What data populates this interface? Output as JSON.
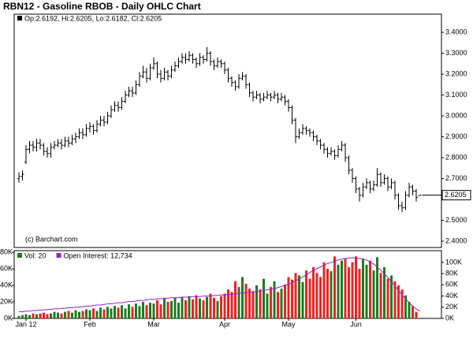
{
  "chart_data": [
    {
      "type": "ohlc",
      "title": "RBN12 - Gasoline RBOB - Daily OHLC Chart",
      "legend_text": "Op:2.6192, Hi:2.6205, Lo:2.6182, Cl:2.6205",
      "annotation": "(c) Barchart.com",
      "color": "#000000",
      "ylim": [
        2.37,
        3.487
      ],
      "yticks": [
        {
          "value": 2.4,
          "label": "2.4000"
        },
        {
          "value": 2.5,
          "label": "2.5000"
        },
        {
          "value": 2.7,
          "label": "2.7000"
        },
        {
          "value": 2.8,
          "label": "2.8000"
        },
        {
          "value": 2.9,
          "label": "2.9000"
        },
        {
          "value": 3.0,
          "label": "3.0000"
        },
        {
          "value": 3.1,
          "label": "3.1000"
        },
        {
          "value": 3.2,
          "label": "3.2000"
        },
        {
          "value": 3.3,
          "label": "3.3000"
        },
        {
          "value": 3.4,
          "label": "3.4000"
        }
      ],
      "ohlc": [
        [
          2.7,
          2.73,
          2.68,
          2.71
        ],
        [
          2.71,
          2.74,
          2.69,
          2.72
        ],
        [
          2.78,
          2.86,
          2.77,
          2.84
        ],
        [
          2.84,
          2.88,
          2.82,
          2.86
        ],
        [
          2.86,
          2.88,
          2.83,
          2.85
        ],
        [
          2.85,
          2.89,
          2.83,
          2.87
        ],
        [
          2.87,
          2.89,
          2.84,
          2.86
        ],
        [
          2.86,
          2.87,
          2.81,
          2.83
        ],
        [
          2.83,
          2.85,
          2.8,
          2.82
        ],
        [
          2.82,
          2.87,
          2.8,
          2.85
        ],
        [
          2.85,
          2.88,
          2.84,
          2.86
        ],
        [
          2.86,
          2.89,
          2.85,
          2.87
        ],
        [
          2.87,
          2.89,
          2.84,
          2.86
        ],
        [
          2.86,
          2.9,
          2.85,
          2.88
        ],
        [
          2.88,
          2.9,
          2.85,
          2.87
        ],
        [
          2.87,
          2.91,
          2.86,
          2.89
        ],
        [
          2.89,
          2.92,
          2.87,
          2.9
        ],
        [
          2.9,
          2.94,
          2.89,
          2.92
        ],
        [
          2.92,
          2.94,
          2.89,
          2.91
        ],
        [
          2.91,
          2.96,
          2.9,
          2.94
        ],
        [
          2.94,
          2.97,
          2.92,
          2.95
        ],
        [
          2.95,
          2.96,
          2.91,
          2.93
        ],
        [
          2.93,
          2.98,
          2.92,
          2.96
        ],
        [
          2.96,
          3.0,
          2.95,
          2.98
        ],
        [
          2.98,
          3.0,
          2.95,
          2.97
        ],
        [
          2.97,
          3.02,
          2.96,
          3.0
        ],
        [
          3.0,
          3.05,
          2.99,
          3.03
        ],
        [
          3.03,
          3.07,
          3.02,
          3.05
        ],
        [
          3.05,
          3.07,
          3.02,
          3.04
        ],
        [
          3.04,
          3.09,
          3.03,
          3.07
        ],
        [
          3.07,
          3.12,
          3.06,
          3.1
        ],
        [
          3.1,
          3.14,
          3.09,
          3.12
        ],
        [
          3.12,
          3.14,
          3.09,
          3.11
        ],
        [
          3.11,
          3.17,
          3.1,
          3.15
        ],
        [
          3.15,
          3.21,
          3.14,
          3.19
        ],
        [
          3.19,
          3.24,
          3.18,
          3.21
        ],
        [
          3.21,
          3.23,
          3.16,
          3.18
        ],
        [
          3.18,
          3.25,
          3.17,
          3.23
        ],
        [
          3.23,
          3.28,
          3.22,
          3.25
        ],
        [
          3.25,
          3.26,
          3.18,
          3.2
        ],
        [
          3.2,
          3.22,
          3.16,
          3.18
        ],
        [
          3.18,
          3.23,
          3.17,
          3.21
        ],
        [
          3.21,
          3.22,
          3.17,
          3.19
        ],
        [
          3.19,
          3.24,
          3.18,
          3.22
        ],
        [
          3.22,
          3.26,
          3.21,
          3.24
        ],
        [
          3.24,
          3.28,
          3.23,
          3.26
        ],
        [
          3.26,
          3.3,
          3.25,
          3.28
        ],
        [
          3.28,
          3.3,
          3.25,
          3.27
        ],
        [
          3.27,
          3.31,
          3.26,
          3.29
        ],
        [
          3.29,
          3.3,
          3.25,
          3.27
        ],
        [
          3.27,
          3.28,
          3.23,
          3.25
        ],
        [
          3.25,
          3.3,
          3.24,
          3.28
        ],
        [
          3.28,
          3.29,
          3.25,
          3.27
        ],
        [
          3.27,
          3.33,
          3.26,
          3.3
        ],
        [
          3.3,
          3.31,
          3.24,
          3.26
        ],
        [
          3.26,
          3.27,
          3.22,
          3.24
        ],
        [
          3.24,
          3.28,
          3.23,
          3.26
        ],
        [
          3.26,
          3.27,
          3.23,
          3.25
        ],
        [
          3.25,
          3.26,
          3.2,
          3.22
        ],
        [
          3.22,
          3.23,
          3.16,
          3.18
        ],
        [
          3.18,
          3.19,
          3.14,
          3.16
        ],
        [
          3.16,
          3.17,
          3.12,
          3.14
        ],
        [
          3.14,
          3.2,
          3.13,
          3.18
        ],
        [
          3.18,
          3.21,
          3.17,
          3.19
        ],
        [
          3.19,
          3.2,
          3.13,
          3.15
        ],
        [
          3.15,
          3.16,
          3.09,
          3.11
        ],
        [
          3.11,
          3.12,
          3.07,
          3.09
        ],
        [
          3.09,
          3.12,
          3.08,
          3.1
        ],
        [
          3.1,
          3.11,
          3.06,
          3.08
        ],
        [
          3.08,
          3.11,
          3.07,
          3.09
        ],
        [
          3.09,
          3.12,
          3.08,
          3.1
        ],
        [
          3.1,
          3.11,
          3.07,
          3.09
        ],
        [
          3.09,
          3.12,
          3.08,
          3.1
        ],
        [
          3.1,
          3.11,
          3.06,
          3.08
        ],
        [
          3.08,
          3.11,
          3.07,
          3.09
        ],
        [
          3.09,
          3.1,
          3.05,
          3.07
        ],
        [
          3.07,
          3.08,
          3.02,
          3.04
        ],
        [
          3.04,
          3.05,
          2.96,
          2.98
        ],
        [
          2.98,
          2.99,
          2.87,
          2.9
        ],
        [
          2.9,
          2.94,
          2.89,
          2.92
        ],
        [
          2.92,
          2.96,
          2.91,
          2.94
        ],
        [
          2.94,
          2.95,
          2.91,
          2.93
        ],
        [
          2.93,
          2.94,
          2.9,
          2.92
        ],
        [
          2.92,
          2.93,
          2.88,
          2.9
        ],
        [
          2.9,
          2.91,
          2.86,
          2.88
        ],
        [
          2.88,
          2.89,
          2.84,
          2.86
        ],
        [
          2.86,
          2.87,
          2.82,
          2.84
        ],
        [
          2.84,
          2.85,
          2.8,
          2.82
        ],
        [
          2.82,
          2.85,
          2.81,
          2.83
        ],
        [
          2.83,
          2.84,
          2.79,
          2.81
        ],
        [
          2.81,
          2.86,
          2.8,
          2.84
        ],
        [
          2.84,
          2.88,
          2.83,
          2.86
        ],
        [
          2.86,
          2.87,
          2.78,
          2.8
        ],
        [
          2.8,
          2.81,
          2.72,
          2.74
        ],
        [
          2.74,
          2.75,
          2.68,
          2.7
        ],
        [
          2.7,
          2.71,
          2.63,
          2.65
        ],
        [
          2.65,
          2.66,
          2.59,
          2.62
        ],
        [
          2.62,
          2.68,
          2.61,
          2.66
        ],
        [
          2.66,
          2.7,
          2.65,
          2.68
        ],
        [
          2.68,
          2.69,
          2.63,
          2.65
        ],
        [
          2.65,
          2.69,
          2.64,
          2.67
        ],
        [
          2.67,
          2.75,
          2.66,
          2.72
        ],
        [
          2.72,
          2.73,
          2.66,
          2.68
        ],
        [
          2.68,
          2.72,
          2.67,
          2.7
        ],
        [
          2.7,
          2.71,
          2.64,
          2.66
        ],
        [
          2.66,
          2.7,
          2.65,
          2.68
        ],
        [
          2.68,
          2.69,
          2.6,
          2.62
        ],
        [
          2.62,
          2.63,
          2.55,
          2.57
        ],
        [
          2.57,
          2.59,
          2.54,
          2.56
        ],
        [
          2.56,
          2.64,
          2.55,
          2.62
        ],
        [
          2.62,
          2.68,
          2.61,
          2.66
        ],
        [
          2.66,
          2.67,
          2.62,
          2.64
        ],
        [
          2.64,
          2.65,
          2.59,
          2.61
        ],
        [
          2.6192,
          2.6205,
          2.6182,
          2.6205
        ]
      ]
    },
    {
      "type": "bar",
      "categories": [
        null,
        null,
        "Jan 12",
        null,
        null,
        null,
        null,
        null,
        null,
        null,
        null,
        null,
        null,
        null,
        null,
        null,
        null,
        null,
        null,
        null,
        "Feb",
        null,
        null,
        null,
        null,
        null,
        null,
        null,
        null,
        null,
        null,
        null,
        null,
        null,
        null,
        null,
        null,
        null,
        "Mar",
        null,
        null,
        null,
        null,
        null,
        null,
        null,
        null,
        null,
        null,
        null,
        null,
        null,
        null,
        null,
        null,
        null,
        null,
        null,
        "Apr",
        null,
        null,
        null,
        null,
        null,
        null,
        null,
        null,
        null,
        null,
        null,
        null,
        null,
        null,
        null,
        null,
        null,
        "May",
        null,
        null,
        null,
        null,
        null,
        null,
        null,
        null,
        null,
        null,
        null,
        null,
        null,
        null,
        null,
        null,
        null,
        null,
        "Jun",
        null,
        null,
        null,
        null,
        null,
        null,
        null,
        null,
        null,
        null,
        null,
        null,
        null,
        null,
        null,
        null,
        null,
        null
      ],
      "ylim": [
        0,
        82
      ],
      "yticks": [
        {
          "value": 0,
          "label": "0K"
        },
        {
          "value": 20,
          "label": "20K"
        },
        {
          "value": 40,
          "label": "40K"
        },
        {
          "value": 60,
          "label": "60K"
        },
        {
          "value": 80,
          "label": "80K"
        }
      ],
      "y2lim": [
        0,
        121
      ],
      "y2ticks": [
        {
          "value": 0,
          "label": "0K"
        },
        {
          "value": 20,
          "label": "20K"
        },
        {
          "value": 40,
          "label": "40K"
        },
        {
          "value": 60,
          "label": "60K"
        },
        {
          "value": 80,
          "label": "80K"
        },
        {
          "value": 100,
          "label": "100K"
        }
      ],
      "down_color": "#ee2222",
      "series": [
        {
          "name": "Vol: 20",
          "color": "#1f7a1f",
          "values": [
            3,
            4,
            5,
            4,
            6,
            5,
            6,
            7,
            5,
            6,
            8,
            7,
            6,
            8,
            9,
            7,
            10,
            8,
            9,
            11,
            10,
            12,
            9,
            13,
            11,
            14,
            12,
            15,
            13,
            16,
            12,
            17,
            14,
            18,
            15,
            20,
            16,
            19,
            18,
            22,
            17,
            24,
            20,
            21,
            25,
            19,
            26,
            22,
            27,
            23,
            28,
            24,
            22,
            26,
            30,
            25,
            21,
            27,
            30,
            35,
            32,
            45,
            38,
            50,
            42,
            36,
            33,
            40,
            35,
            48,
            30,
            38,
            45,
            32,
            36,
            41,
            50,
            47,
            55,
            52,
            44,
            58,
            48,
            62,
            55,
            50,
            68,
            60,
            57,
            75,
            65,
            70,
            72,
            62,
            68,
            75,
            60,
            72,
            65,
            70,
            58,
            74,
            55,
            62,
            48,
            52,
            45,
            40,
            35,
            28,
            20,
            15,
            8,
            0.02
          ]
        },
        {
          "name": "Open Interest: 12,734",
          "color": "#9a1fd0",
          "type": "line",
          "axis": "y2",
          "values": [
            12,
            12,
            13,
            13,
            14,
            14,
            15,
            15,
            16,
            16,
            17,
            17,
            18,
            18,
            19,
            19,
            20,
            20,
            21,
            22,
            22,
            23,
            24,
            24,
            25,
            26,
            26,
            27,
            28,
            28,
            29,
            30,
            30,
            31,
            32,
            32,
            33,
            34,
            34,
            35,
            35,
            36,
            36,
            37,
            37,
            37,
            38,
            38,
            38,
            39,
            39,
            39,
            40,
            40,
            40,
            41,
            41,
            42,
            42,
            43,
            43,
            44,
            45,
            45,
            46,
            47,
            47,
            48,
            49,
            50,
            51,
            52,
            53,
            55,
            57,
            59,
            61,
            64,
            67,
            70,
            74,
            78,
            82,
            86,
            89,
            92,
            95,
            98,
            100,
            102,
            104,
            106,
            107,
            108,
            108,
            108,
            107,
            106,
            104,
            101,
            97,
            92,
            86,
            80,
            73,
            66,
            58,
            50,
            42,
            35,
            28,
            22,
            17,
            12.734
          ]
        }
      ]
    }
  ]
}
